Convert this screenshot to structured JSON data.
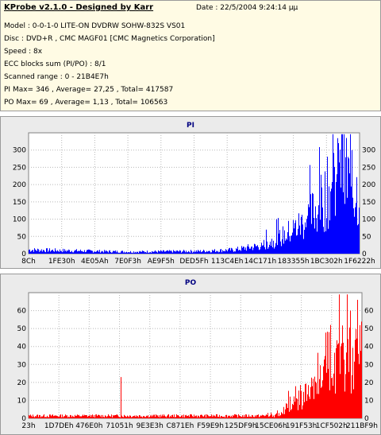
{
  "info": {
    "title": "KProbe v2.1.0 - Designed by Karr",
    "date": "Date : 22/5/2004 9:24:14 μμ",
    "lines": [
      "Model : 0-0-1-0 LITE-ON DVDRW SOHW-832S  VS01",
      "Disc : DVD+R , CMC MAGF01 [CMC Magnetics Corporation]",
      "Speed : 8x",
      "ECC blocks sum (PI/PO) : 8/1",
      "Scanned range : 0 - 21B4E7h",
      "PI Max= 346 , Average= 27,25 , Total= 417587",
      "PO Max= 69 , Average= 1,13 , Total= 106563"
    ]
  },
  "chart_data": [
    {
      "type": "bar",
      "title": "PI",
      "color": "#0000ff",
      "ylim": [
        0,
        350
      ],
      "y_ticks": [
        0,
        50,
        100,
        150,
        200,
        250,
        300
      ],
      "x_tick_labels": [
        "8Ch",
        "1FE30h",
        "4E05Ah",
        "7E0F3h",
        "AE9F5h",
        "DED5Fh",
        "113C4Eh",
        "14C171h",
        "183355h",
        "1BC302h",
        "1F6222h"
      ],
      "profile": [
        {
          "x": 0.0,
          "y": 12
        },
        {
          "x": 0.3,
          "y": 6
        },
        {
          "x": 0.52,
          "y": 8
        },
        {
          "x": 0.62,
          "y": 12
        },
        {
          "x": 0.7,
          "y": 25
        },
        {
          "x": 0.76,
          "y": 50
        },
        {
          "x": 0.82,
          "y": 90
        },
        {
          "x": 0.87,
          "y": 140
        },
        {
          "x": 0.91,
          "y": 200
        },
        {
          "x": 0.95,
          "y": 250
        },
        {
          "x": 0.98,
          "y": 210
        },
        {
          "x": 1.0,
          "y": 180
        }
      ],
      "max": 346,
      "grid": true
    },
    {
      "type": "bar",
      "title": "PO",
      "color": "#ff0000",
      "ylim": [
        0,
        70
      ],
      "y_ticks": [
        0,
        10,
        20,
        30,
        40,
        50,
        60
      ],
      "x_tick_labels": [
        "23h",
        "1D7DEh",
        "476E0h",
        "71051h",
        "9E3E3h",
        "C871Eh",
        "F59E9h",
        "125DF9h",
        "15CE06h",
        "191F53h",
        "1CF502h",
        "211BF9h"
      ],
      "profile": [
        {
          "x": 0.0,
          "y": 1.5
        },
        {
          "x": 0.74,
          "y": 1.5
        },
        {
          "x": 0.77,
          "y": 6
        },
        {
          "x": 0.8,
          "y": 11
        },
        {
          "x": 0.86,
          "y": 17
        },
        {
          "x": 0.9,
          "y": 26
        },
        {
          "x": 0.94,
          "y": 35
        },
        {
          "x": 1.0,
          "y": 44
        }
      ],
      "max": 69,
      "grid": true
    }
  ]
}
